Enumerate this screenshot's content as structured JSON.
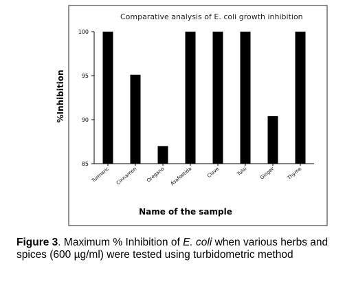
{
  "chart_data": {
    "type": "bar",
    "title": "Comparative analysis of  E. coli growth inhibition",
    "xlabel": "Name of the sample",
    "ylabel": "%Inhibition",
    "categories": [
      "Turmeric",
      "Cinnamon",
      "Oregano",
      "Asafoetida",
      "Clove",
      "Tulsi",
      "Ginger",
      "Thyme"
    ],
    "values": [
      100,
      95.1,
      87,
      100,
      100,
      100,
      90.4,
      100
    ],
    "ylim": [
      85,
      100
    ],
    "yticks": [
      "85",
      "90",
      "95",
      "100"
    ],
    "bar_color": "#000000",
    "grid": false
  },
  "caption": {
    "label": "Figure 3",
    "text_1": ". Maximum % Inhibition of ",
    "italic_1": "E. coli",
    "text_2": " when various herbs and spices (600 µg/ml) were tested using turbidometric method"
  }
}
